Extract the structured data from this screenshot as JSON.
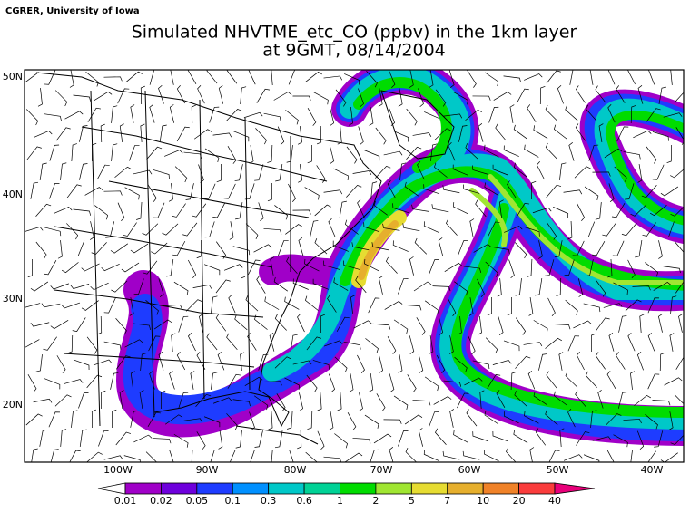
{
  "header": {
    "credit": "CGRER, University of Iowa",
    "title": "Simulated NHVTME_etc_CO (ppbv) in the 1km layer",
    "subtitle": "at 9GMT, 08/14/2004"
  },
  "map": {
    "lat_labels": [
      "50N",
      "40N",
      "30N",
      "20N"
    ],
    "lon_labels": [
      "100W",
      "90W",
      "80W",
      "70W",
      "60W",
      "50W",
      "40W"
    ]
  },
  "colorbar": {
    "low_color": "#ffffff",
    "high_color": "#e8007a",
    "colors": [
      "#a000c8",
      "#6e00dc",
      "#1e3cff",
      "#0090ff",
      "#00c8c8",
      "#00d296",
      "#00dc00",
      "#a0e632",
      "#e6dc32",
      "#e6af2d",
      "#f08228",
      "#fa3c3c"
    ],
    "labels": [
      "0.01",
      "0.02",
      "0.05",
      "0.1",
      "0.3",
      "0.6",
      "1",
      "2",
      "5",
      "7",
      "10",
      "20",
      "40"
    ]
  }
}
